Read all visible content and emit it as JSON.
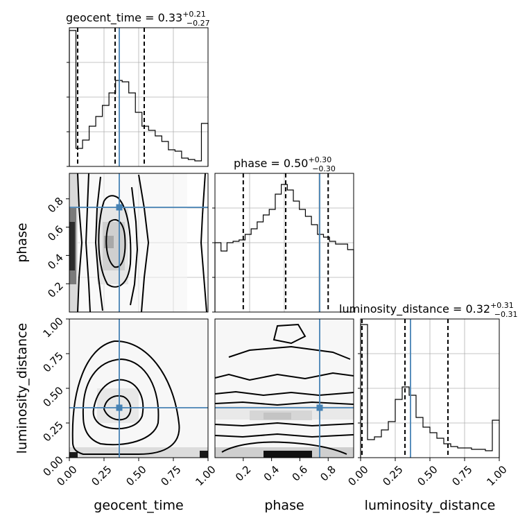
{
  "chart_data": {
    "type": "corner",
    "parameters": [
      "geocent_time",
      "phase",
      "luminosity_distance"
    ],
    "titles": [
      {
        "param": "geocent_time",
        "median": "0.33",
        "plus": "+0.21",
        "minus": "−0.27"
      },
      {
        "param": "phase",
        "median": "0.50",
        "plus": "+0.30",
        "minus": "−0.30"
      },
      {
        "param": "luminosity_distance",
        "median": "0.32",
        "plus": "+0.31",
        "minus": "−0.31"
      }
    ],
    "ranges": {
      "geocent_time": [
        0.0,
        1.0
      ],
      "phase": [
        0.0,
        0.98
      ],
      "luminosity_distance": [
        0.0,
        1.0
      ]
    },
    "truths": {
      "geocent_time": 0.36,
      "phase": 0.74,
      "luminosity_distance": 0.36
    },
    "truth_color": "#4682b4",
    "histograms": {
      "geocent_time": {
        "quantiles": [
          0.06,
          0.33,
          0.54
        ],
        "counts": [
          0.98,
          0.13,
          0.19,
          0.29,
          0.36,
          0.44,
          0.53,
          0.62,
          0.61,
          0.53,
          0.39,
          0.29,
          0.26,
          0.22,
          0.18,
          0.12,
          0.11,
          0.06,
          0.05,
          0.04,
          0.31
        ]
      },
      "phase": {
        "quantiles": [
          0.2,
          0.5,
          0.8
        ],
        "counts": [
          0.5,
          0.44,
          0.5,
          0.51,
          0.52,
          0.56,
          0.6,
          0.65,
          0.7,
          0.74,
          0.85,
          0.92,
          0.88,
          0.8,
          0.74,
          0.69,
          0.63,
          0.56,
          0.54,
          0.51,
          0.49,
          0.49,
          0.45
        ]
      },
      "luminosity_distance": {
        "quantiles": [
          0.01,
          0.32,
          0.63
        ],
        "counts": [
          0.96,
          0.13,
          0.15,
          0.2,
          0.26,
          0.42,
          0.51,
          0.45,
          0.29,
          0.22,
          0.18,
          0.14,
          0.1,
          0.08,
          0.07,
          0.07,
          0.06,
          0.06,
          0.05,
          0.27
        ]
      }
    },
    "x_ticks": {
      "geocent_time": [
        "0.00",
        "0.25",
        "0.50",
        "0.75",
        "1.00"
      ],
      "phase": [
        "0.2",
        "0.4",
        "0.6",
        "0.8"
      ],
      "luminosity_distance": [
        "0.00",
        "0.25",
        "0.50",
        "0.75",
        "1.00"
      ]
    },
    "y_ticks": {
      "phase": [
        "0.2",
        "0.4",
        "0.6",
        "0.8"
      ],
      "luminosity_distance": [
        "0.00",
        "0.25",
        "0.50",
        "0.75",
        "1.00"
      ]
    },
    "grid": true
  }
}
